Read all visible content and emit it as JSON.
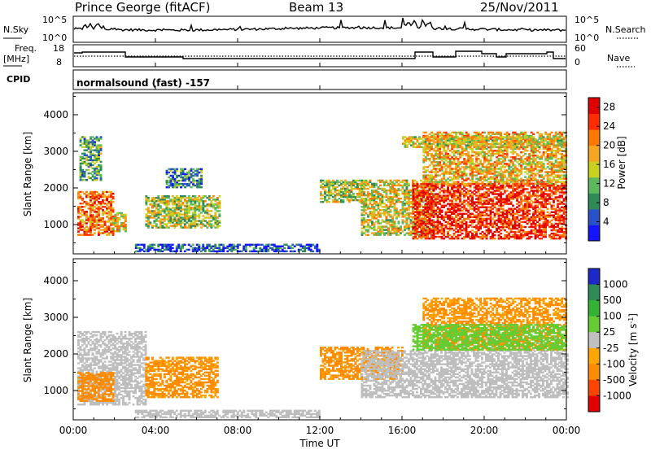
{
  "header": {
    "station": "Prince George (fitACF)",
    "beam": "Beam 13",
    "date": "25/Nov/2011"
  },
  "strips": {
    "noise": {
      "left_label": "N.Sky",
      "right_label": "N.Search",
      "left_ticks": [
        "10^5",
        "10^0"
      ],
      "right_ticks": [
        "10^5",
        "10^0"
      ]
    },
    "freq": {
      "left_label_1": "Freq.",
      "left_label_2": "[MHz]",
      "right_label": "Nave",
      "left_ticks": [
        "18",
        "8"
      ],
      "right_ticks": [
        "60",
        "0"
      ]
    },
    "cpid": {
      "label": "CPID",
      "program": "normalsound (fast) -157"
    }
  },
  "colors": {
    "power": [
      "#1414ff",
      "#2a52c8",
      "#2e8b57",
      "#5bb85b",
      "#c8d21e",
      "#f5a623",
      "#ff7800",
      "#ff2d00",
      "#e00000"
    ],
    "velocity": [
      "#1e28c8",
      "#2e8b57",
      "#33b233",
      "#66cc33",
      "#c0c0c0",
      "#ffa500",
      "#ff8c00",
      "#ff4500",
      "#e00000"
    ],
    "ground_scatter": "#bebebe"
  },
  "chart_data": [
    {
      "type": "heatmap",
      "title": "",
      "xlabel": "",
      "ylabel": "Slant Range [km]",
      "xlim": [
        "00:00",
        "24:00"
      ],
      "ylim": [
        200,
        4600
      ],
      "x_ticks": [
        "00:00",
        "04:00",
        "08:00",
        "12:00",
        "16:00",
        "20:00",
        "00:00"
      ],
      "y_ticks": [
        "1000",
        "2000",
        "3000",
        "4000"
      ],
      "colorbar": {
        "label": "Power [dB]",
        "ticks": [
          "4",
          "8",
          "12",
          "16",
          "20",
          "24",
          "28"
        ],
        "range": [
          0,
          30
        ]
      },
      "blobs": [
        {
          "t": [
            0.2,
            1.9
          ],
          "r": [
            700,
            1900
          ],
          "v": 22
        },
        {
          "t": [
            0.3,
            1.3
          ],
          "r": [
            2200,
            3400
          ],
          "v": 10
        },
        {
          "t": [
            1.9,
            2.5
          ],
          "r": [
            800,
            1300
          ],
          "v": 18
        },
        {
          "t": [
            3.5,
            7.1
          ],
          "r": [
            900,
            1800
          ],
          "v": 14
        },
        {
          "t": [
            4.5,
            6.2
          ],
          "r": [
            2000,
            2500
          ],
          "v": 8
        },
        {
          "t": [
            3.0,
            12.0
          ],
          "r": [
            250,
            450
          ],
          "v": 5
        },
        {
          "t": [
            12.0,
            14.0
          ],
          "r": [
            1600,
            2200
          ],
          "v": 14
        },
        {
          "t": [
            14.0,
            17.5
          ],
          "r": [
            700,
            2200
          ],
          "v": 16
        },
        {
          "t": [
            16.5,
            24.0
          ],
          "r": [
            600,
            2100
          ],
          "v": 26
        },
        {
          "t": [
            17.0,
            24.0
          ],
          "r": [
            2100,
            3500
          ],
          "v": 18
        },
        {
          "t": [
            16.0,
            24.0
          ],
          "r": [
            3100,
            3400
          ],
          "v": 16
        }
      ]
    },
    {
      "type": "heatmap",
      "title": "",
      "xlabel": "Time UT",
      "ylabel": "Slant Range [km]",
      "xlim": [
        "00:00",
        "24:00"
      ],
      "ylim": [
        200,
        4600
      ],
      "x_ticks": [
        "00:00",
        "04:00",
        "08:00",
        "12:00",
        "16:00",
        "20:00",
        "00:00"
      ],
      "y_ticks": [
        "1000",
        "2000",
        "3000",
        "4000"
      ],
      "colorbar": {
        "label": "Velocity [m s^-1]",
        "ticks": [
          "1000",
          "500",
          "100",
          "25",
          "-25",
          "-100",
          "-500",
          "-1000"
        ]
      },
      "blobs": [
        {
          "t": [
            0.2,
            3.5
          ],
          "r": [
            600,
            2600
          ],
          "v": "ground"
        },
        {
          "t": [
            0.2,
            1.9
          ],
          "r": [
            700,
            1500
          ],
          "v": -300
        },
        {
          "t": [
            3.5,
            7.0
          ],
          "r": [
            800,
            1900
          ],
          "v": -150
        },
        {
          "t": [
            3.0,
            12.0
          ],
          "r": [
            250,
            450
          ],
          "v": "ground"
        },
        {
          "t": [
            12.0,
            16.0
          ],
          "r": [
            1300,
            2200
          ],
          "v": -150
        },
        {
          "t": [
            14.0,
            24.0
          ],
          "r": [
            800,
            2100
          ],
          "v": "ground"
        },
        {
          "t": [
            17.0,
            24.0
          ],
          "r": [
            2100,
            3500
          ],
          "v": -120
        },
        {
          "t": [
            16.5,
            24.0
          ],
          "r": [
            2100,
            2800
          ],
          "v": 60
        }
      ]
    }
  ]
}
